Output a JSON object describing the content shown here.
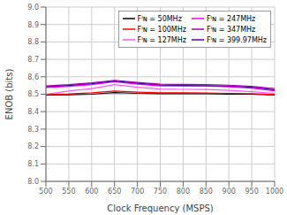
{
  "chart_data": {
    "type": "line",
    "xlabel": "Clock Frequency (MSPS)",
    "ylabel": "ENOB (bits)",
    "x": [
      500,
      550,
      600,
      650,
      700,
      750,
      800,
      850,
      900,
      950,
      1000
    ],
    "xlim": [
      500,
      1000
    ],
    "xticks": [
      500,
      550,
      600,
      650,
      700,
      750,
      800,
      850,
      900,
      950,
      1000
    ],
    "ylim": [
      8.0,
      9.0
    ],
    "yticks": [
      {
        "value": 8.0,
        "label": "8.0"
      },
      8.1,
      8.2,
      8.3,
      8.4,
      8.5,
      8.6,
      8.7,
      8.8,
      8.9,
      {
        "value": 9.0,
        "label": "9.0"
      }
    ],
    "grid": true,
    "legend": "upper right",
    "series": [
      {
        "name": "Fᴵɴ = 50MHz",
        "color": "#000000",
        "values": [
          8.495,
          8.497,
          8.5,
          8.51,
          8.505,
          8.503,
          8.503,
          8.503,
          8.5,
          8.5,
          8.495
        ]
      },
      {
        "name": "Fᴵɴ = 100MHz",
        "color": "#ff0000",
        "values": [
          8.5,
          8.502,
          8.508,
          8.518,
          8.512,
          8.508,
          8.508,
          8.507,
          8.505,
          8.503,
          8.498
        ]
      },
      {
        "name": "Fᴵɴ = 127MHz",
        "color": "#ff55ff",
        "values": [
          8.5,
          8.518,
          8.532,
          8.555,
          8.54,
          8.53,
          8.528,
          8.527,
          8.522,
          8.515,
          8.505
        ]
      },
      {
        "name": "Fᴵɴ = 247MHz",
        "color": "#ff00ff",
        "values": [
          8.538,
          8.545,
          8.555,
          8.572,
          8.558,
          8.548,
          8.547,
          8.547,
          8.542,
          8.535,
          8.52
        ]
      },
      {
        "name": "Fᴵɴ = 347MHz",
        "color": "#aa00aa",
        "values": [
          8.548,
          8.555,
          8.565,
          8.58,
          8.568,
          8.558,
          8.556,
          8.555,
          8.552,
          8.545,
          8.532
        ]
      },
      {
        "name": "Fᴵɴ = 399.97MHz",
        "color": "#5500aa",
        "values": [
          8.542,
          8.55,
          8.56,
          8.575,
          8.563,
          8.553,
          8.55,
          8.549,
          8.546,
          8.54,
          8.525
        ]
      }
    ]
  }
}
